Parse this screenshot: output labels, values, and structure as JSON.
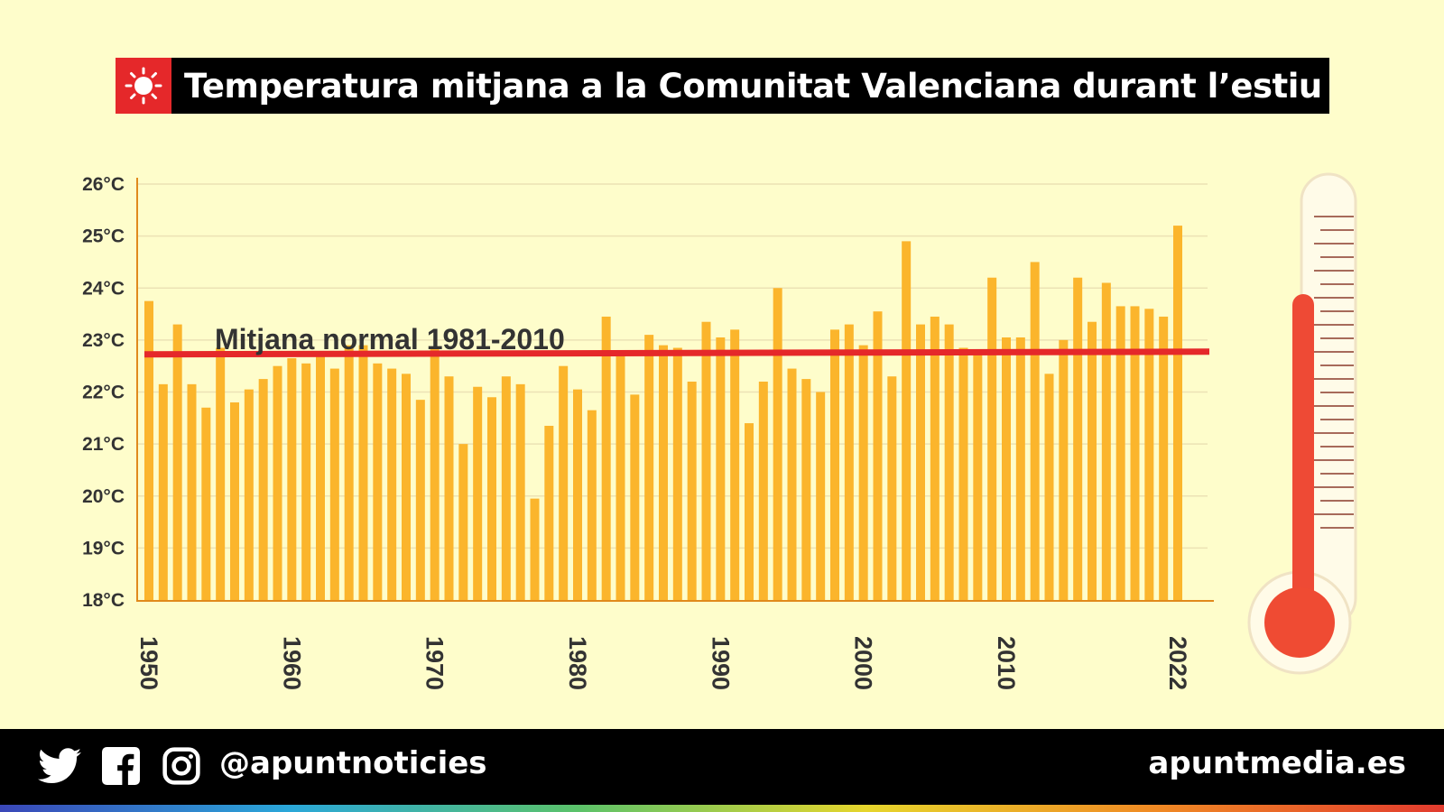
{
  "title": "Temperatura mitjana a la Comunitat Valenciana durant l’estiu",
  "icons": {
    "title": "sun-icon",
    "side": "thermometer-icon",
    "social": [
      "twitter-icon",
      "facebook-icon",
      "instagram-icon"
    ]
  },
  "footer": {
    "handle": "@apuntnoticies",
    "site": "apuntmedia.es"
  },
  "colors": {
    "bar": "#fbb52c",
    "normal_line": "#e5282a",
    "background": "#fefdcb",
    "title_bg": "#000000",
    "title_icon_bg": "#e5282a"
  },
  "chart_data": {
    "type": "bar",
    "title": "Temperatura mitjana a la Comunitat Valenciana durant l’estiu",
    "xlabel": "",
    "ylabel": "",
    "ylim": [
      18,
      26
    ],
    "yticks": [
      "18°C",
      "19°C",
      "20°C",
      "21°C",
      "22°C",
      "23°C",
      "24°C",
      "25°C",
      "26°C"
    ],
    "xticks": [
      "1950",
      "1960",
      "1970",
      "1980",
      "1990",
      "2000",
      "2010",
      "2022"
    ],
    "grid": true,
    "x_start": 1950,
    "values": [
      23.75,
      22.15,
      23.3,
      22.15,
      21.7,
      22.85,
      21.8,
      22.05,
      22.25,
      22.5,
      22.65,
      22.55,
      22.7,
      22.45,
      22.9,
      22.9,
      22.55,
      22.45,
      22.35,
      21.85,
      22.85,
      22.3,
      21.0,
      22.1,
      21.9,
      22.3,
      22.15,
      19.95,
      21.35,
      22.5,
      22.05,
      21.65,
      23.45,
      22.7,
      21.95,
      23.1,
      22.9,
      22.85,
      22.2,
      23.35,
      23.05,
      23.2,
      21.4,
      22.2,
      24.0,
      22.45,
      22.25,
      22.0,
      23.2,
      23.3,
      22.9,
      23.55,
      22.3,
      24.9,
      23.3,
      23.45,
      23.3,
      22.85,
      22.8,
      24.2,
      23.05,
      23.05,
      24.5,
      22.35,
      23.0,
      24.2,
      23.35,
      24.1,
      23.65,
      23.65,
      23.6,
      23.45,
      25.2
    ],
    "reference_line": {
      "label": "Mitjana normal 1981-2010",
      "value": 22.75
    }
  }
}
